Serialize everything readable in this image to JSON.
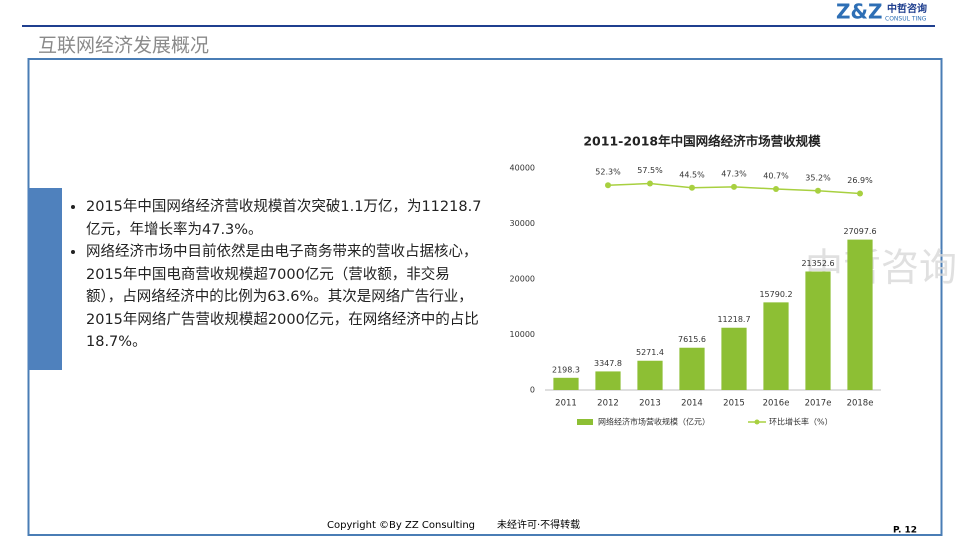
{
  "header": {
    "title": "互联网经济发展概况",
    "logo": "Z&Z",
    "logo_cn": "中哲咨询",
    "logo_en": "CONSUL TING"
  },
  "bullets": [
    "2015年中国网络经济营收规模首次突破1.1万亿，为11218.7亿元，年增长率为47.3%。",
    "网络经济市场中目前依然是由电子商务带来的营收占据核心，2015年中国电商营收规模超7000亿元（营收额，非交易额），占网络经济中的比例为63.6%。其次是网络广告行业，2015年网络广告营收规模超2000亿元，在网络经济中的占比18.7%。"
  ],
  "watermark": "中哲咨询",
  "footer": {
    "copyright": "Copyright ©By  ZZ Consulting",
    "notice": "未经许可·不得转载",
    "page": "P. 12"
  },
  "chart_data": {
    "type": "bar",
    "title": "2011-2018年中国网络经济市场营收规模",
    "categories": [
      "2011",
      "2012",
      "2013",
      "2014",
      "2015",
      "2016e",
      "2017e",
      "2018e"
    ],
    "series": [
      {
        "name": "网络经济市场营收规模（亿元）",
        "type": "bar",
        "color": "#8dbf34",
        "values": [
          2198.3,
          3347.8,
          5271.4,
          7615.6,
          11218.7,
          15790.2,
          21352.6,
          27097.6
        ]
      },
      {
        "name": "环比增长率（%）",
        "type": "line",
        "axis": "y2",
        "color": "#a8d040",
        "values": [
          null,
          52.3,
          57.5,
          44.5,
          47.3,
          40.7,
          35.2,
          26.9
        ],
        "value_labels": [
          null,
          "52.3%",
          "57.5%",
          "44.5%",
          "47.3%",
          "40.7%",
          "35.2%",
          "26.9%"
        ]
      }
    ],
    "ylim": [
      0,
      40000
    ],
    "yticks": [
      0,
      10000,
      20000,
      30000,
      40000
    ],
    "y2lim": [
      -575,
      105
    ],
    "legend": "bottom"
  }
}
